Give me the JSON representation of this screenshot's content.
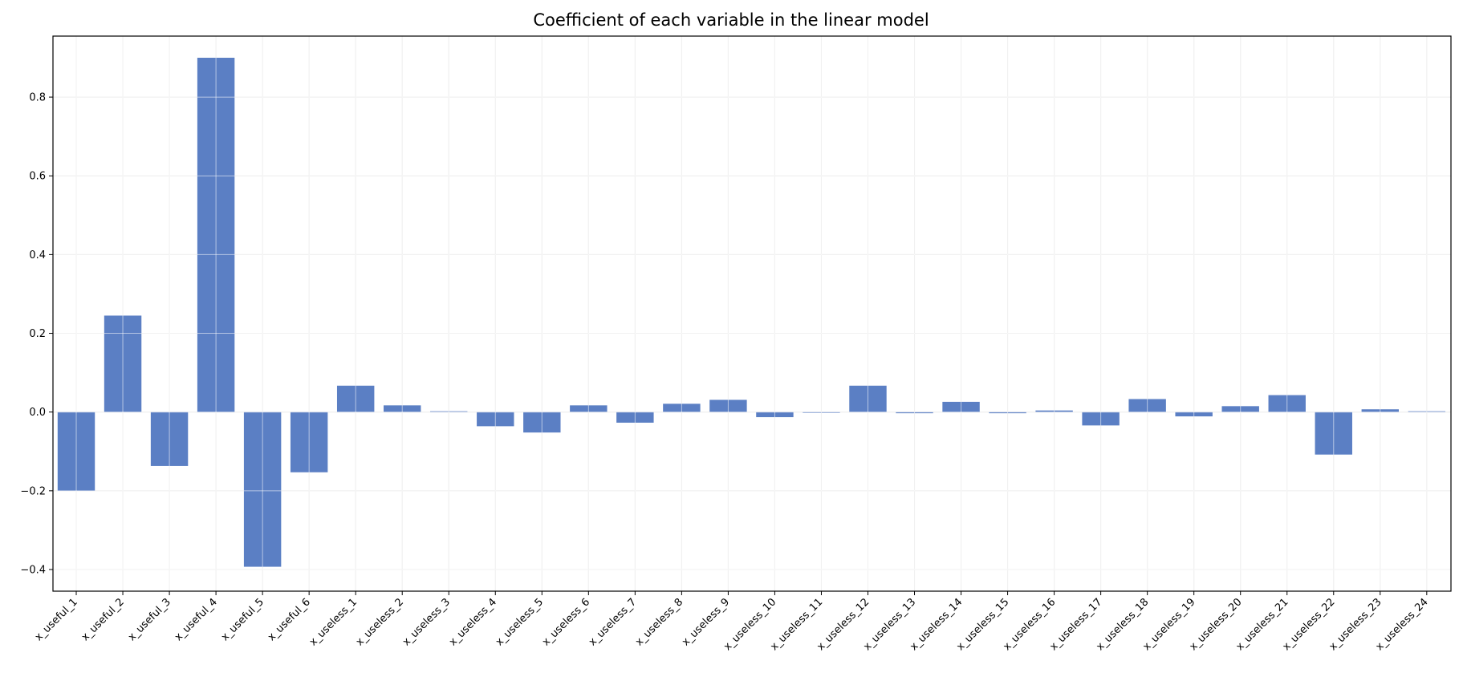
{
  "chart_data": {
    "type": "bar",
    "title": "Coefficient of each variable in the linear model",
    "xlabel": "",
    "ylabel": "",
    "grid": true,
    "bar_color": "#5b7fc4",
    "ylim": [
      -0.455,
      0.955
    ],
    "yticks": [
      -0.4,
      -0.2,
      0.0,
      0.2,
      0.4,
      0.6,
      0.8
    ],
    "ytick_labels": [
      "−0.4",
      "−0.2",
      "0.0",
      "0.2",
      "0.4",
      "0.6",
      "0.8"
    ],
    "categories": [
      "x_useful_1",
      "x_useful_2",
      "x_useful_3",
      "x_useful_4",
      "x_useful_5",
      "x_useful_6",
      "x_useless_1",
      "x_useless_2",
      "x_useless_3",
      "x_useless_4",
      "x_useless_5",
      "x_useless_6",
      "x_useless_7",
      "x_useless_8",
      "x_useless_9",
      "x_useless_10",
      "x_useless_11",
      "x_useless_12",
      "x_useless_13",
      "x_useless_14",
      "x_useless_15",
      "x_useless_16",
      "x_useless_17",
      "x_useless_18",
      "x_useless_19",
      "x_useless_20",
      "x_useless_21",
      "x_useless_22",
      "x_useless_23",
      "x_useless_24"
    ],
    "values": [
      -0.2,
      0.245,
      -0.137,
      0.9,
      -0.393,
      -0.153,
      0.067,
      0.017,
      0.002,
      -0.036,
      -0.052,
      0.017,
      -0.027,
      0.021,
      0.031,
      -0.013,
      -0.002,
      0.067,
      -0.003,
      0.026,
      -0.003,
      0.004,
      -0.034,
      0.033,
      -0.011,
      0.015,
      0.043,
      -0.108,
      0.007,
      0.002
    ]
  }
}
